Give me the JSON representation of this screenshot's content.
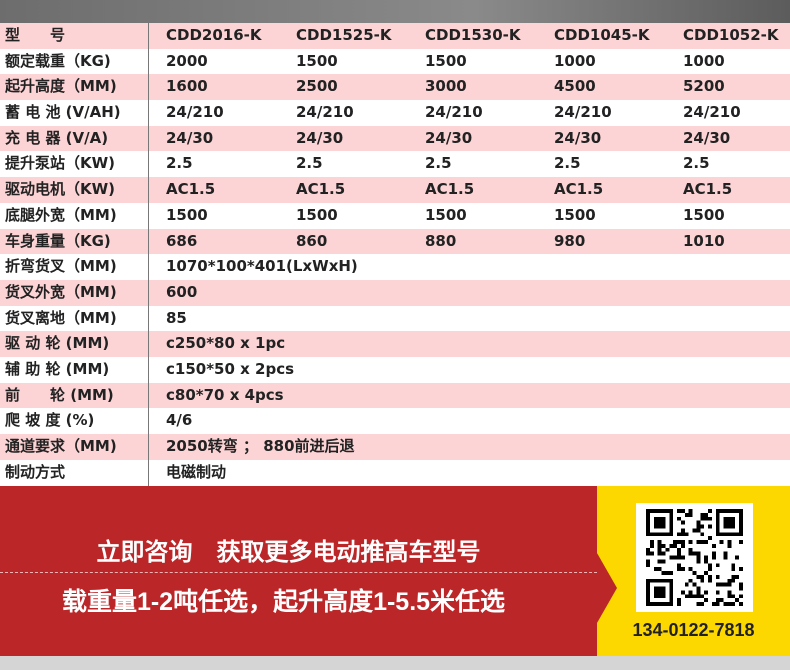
{
  "table": {
    "rows": [
      {
        "label": "型　　号",
        "values": [
          "CDD2016-K",
          "CDD1525-K",
          "CDD1530-K",
          "CDD1045-K",
          "CDD1052-K"
        ]
      },
      {
        "label": "额定载重（KG)",
        "values": [
          "2000",
          "1500",
          "1500",
          "1000",
          "1000"
        ]
      },
      {
        "label": "起升高度（MM)",
        "values": [
          "1600",
          "2500",
          "3000",
          "4500",
          "5200"
        ]
      },
      {
        "label": "蓄 电 池 (V/AH)",
        "values": [
          "24/210",
          "24/210",
          "24/210",
          "24/210",
          "24/210"
        ]
      },
      {
        "label": "充 电 器 (V/A)",
        "values": [
          "24/30",
          "24/30",
          "24/30",
          "24/30",
          "24/30"
        ]
      },
      {
        "label": "提升泵站（KW)",
        "values": [
          "2.5",
          "2.5",
          "2.5",
          "2.5",
          "2.5"
        ]
      },
      {
        "label": "驱动电机（KW)",
        "values": [
          "AC1.5",
          "AC1.5",
          "AC1.5",
          "AC1.5",
          "AC1.5"
        ]
      },
      {
        "label": "底腿外宽（MM)",
        "values": [
          "1500",
          "1500",
          "1500",
          "1500",
          "1500"
        ]
      },
      {
        "label": "车身重量（KG)",
        "values": [
          "686",
          "860",
          "880",
          "980",
          "1010"
        ]
      },
      {
        "label": "折弯货叉（MM)",
        "values": [
          "1070*100*401(LxWxH)"
        ]
      },
      {
        "label": "货叉外宽（MM)",
        "values": [
          "600"
        ]
      },
      {
        "label": "货叉离地（MM)",
        "values": [
          "85"
        ]
      },
      {
        "label": "驱 动 轮 (MM)",
        "values": [
          "c250*80 x 1pc"
        ]
      },
      {
        "label": "辅 助 轮 (MM)",
        "values": [
          "c150*50 x 2pcs"
        ]
      },
      {
        "label": "前　　轮 (MM)",
        "values": [
          "c80*70 x 4pcs"
        ]
      },
      {
        "label": "爬 坡 度 (%)",
        "values": [
          "4/6"
        ]
      },
      {
        "label": "通道要求（MM)",
        "values": [
          "2050转弯 ； 880前进后退"
        ]
      },
      {
        "label": "制动方式",
        "values": [
          "电磁制动"
        ]
      }
    ]
  },
  "banner": {
    "line1": "立即咨询　获取更多电动推高车型号",
    "line2": "载重量1-2吨任选，起升高度1-5.5米任选",
    "phone": "134-0122-7818"
  },
  "colors": {
    "pink_row": "#fcd4d6",
    "banner_red": "#bb2629",
    "yellow": "#fcd800"
  }
}
